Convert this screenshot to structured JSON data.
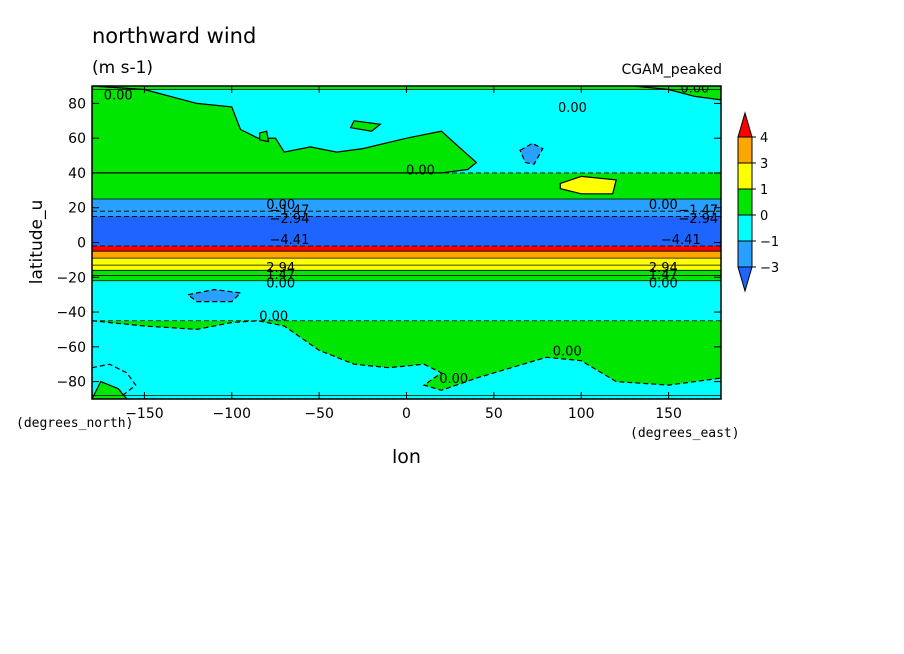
{
  "chart_data": {
    "type": "heatmap",
    "title": "northward wind",
    "units": "(m s-1)",
    "dataset": "CGAM_peaked",
    "xlabel": "lon",
    "ylabel": "latitude_u",
    "x_units": "(degrees_east)",
    "y_units": "(degrees_north)",
    "xlim": [
      -180,
      180
    ],
    "ylim": [
      -90,
      90
    ],
    "x_ticks": [
      -150,
      -100,
      -50,
      0,
      50,
      100,
      150
    ],
    "y_ticks": [
      80,
      60,
      40,
      20,
      0,
      -20,
      -40,
      -60,
      -80
    ],
    "colorbar": {
      "levels": [
        -3,
        -1,
        0,
        1,
        3,
        4
      ],
      "labels": [
        "4",
        "3",
        "1",
        "0",
        "−1",
        "−3"
      ],
      "colors": [
        "#1e64ff",
        "#28a0ff",
        "#00ffff",
        "#00e600",
        "#ffff00",
        "#ffa500",
        "#ff0000"
      ]
    },
    "lat_profile": [
      {
        "from": 88,
        "to": 90,
        "value": 0.3
      },
      {
        "from": 40,
        "to": 88,
        "value": -0.5
      },
      {
        "from": 25,
        "to": 40,
        "value": 0.4
      },
      {
        "from": 18,
        "to": 25,
        "value": -1.5
      },
      {
        "from": 15,
        "to": 18,
        "value": -2.5
      },
      {
        "from": -2,
        "to": 15,
        "value": -4.0
      },
      {
        "from": -5,
        "to": -2,
        "value": 4.5
      },
      {
        "from": -9,
        "to": -5,
        "value": 3.5
      },
      {
        "from": -13,
        "to": -9,
        "value": 2.5
      },
      {
        "from": -16,
        "to": -13,
        "value": 1.5
      },
      {
        "from": -19,
        "to": -16,
        "value": 0.8
      },
      {
        "from": -22,
        "to": -19,
        "value": 0.3
      },
      {
        "from": -45,
        "to": -22,
        "value": -0.5
      },
      {
        "from": -88,
        "to": -45,
        "value": 0.4
      },
      {
        "from": -90,
        "to": -88,
        "value": 0.3
      }
    ],
    "patches": [
      {
        "value": 0.4,
        "pts": [
          [
            -180,
            90
          ],
          [
            -150,
            88
          ],
          [
            -120,
            80
          ],
          [
            -100,
            78
          ],
          [
            -95,
            65
          ],
          [
            -85,
            60
          ],
          [
            -75,
            60
          ],
          [
            -70,
            52
          ],
          [
            -55,
            55
          ],
          [
            -40,
            52
          ],
          [
            -25,
            54
          ],
          [
            0,
            60
          ],
          [
            20,
            64
          ],
          [
            30,
            55
          ],
          [
            40,
            46
          ],
          [
            35,
            42
          ],
          [
            20,
            40
          ],
          [
            0,
            40
          ],
          [
            -30,
            40
          ],
          [
            -60,
            40
          ],
          [
            -90,
            40
          ],
          [
            -120,
            40
          ],
          [
            -150,
            40
          ],
          [
            -180,
            40
          ]
        ]
      },
      {
        "value": 0.4,
        "pts": [
          [
            130,
            90
          ],
          [
            180,
            90
          ],
          [
            180,
            82
          ],
          [
            165,
            84
          ],
          [
            150,
            88
          ]
        ]
      },
      {
        "value": 0.4,
        "pts": [
          [
            -30,
            70
          ],
          [
            -15,
            68
          ],
          [
            -20,
            64
          ],
          [
            -32,
            66
          ]
        ]
      },
      {
        "value": 0.4,
        "pts": [
          [
            -84,
            63
          ],
          [
            -80,
            64
          ],
          [
            -79,
            58
          ],
          [
            -84,
            59
          ]
        ]
      },
      {
        "value": -1.5,
        "pts": [
          [
            65,
            53
          ],
          [
            72,
            57
          ],
          [
            78,
            54
          ],
          [
            73,
            45
          ],
          [
            68,
            46
          ]
        ]
      },
      {
        "value": 1.5,
        "pts": [
          [
            88,
            34
          ],
          [
            100,
            38
          ],
          [
            120,
            36
          ],
          [
            118,
            28
          ],
          [
            100,
            28
          ],
          [
            88,
            31
          ]
        ]
      },
      {
        "value": -1.5,
        "pts": [
          [
            -125,
            -30
          ],
          [
            -110,
            -27
          ],
          [
            -95,
            -29
          ],
          [
            -100,
            -34
          ],
          [
            -120,
            -34
          ]
        ]
      },
      {
        "value": -0.5,
        "pts": [
          [
            -180,
            -45
          ],
          [
            -150,
            -48
          ],
          [
            -120,
            -50
          ],
          [
            -100,
            -46
          ],
          [
            -85,
            -45
          ],
          [
            -70,
            -48
          ],
          [
            -50,
            -62
          ],
          [
            -30,
            -70
          ],
          [
            -10,
            -72
          ],
          [
            10,
            -70
          ],
          [
            20,
            -75
          ],
          [
            10,
            -82
          ],
          [
            20,
            -85
          ],
          [
            40,
            -78
          ],
          [
            60,
            -72
          ],
          [
            80,
            -66
          ],
          [
            100,
            -68
          ],
          [
            120,
            -80
          ],
          [
            150,
            -82
          ],
          [
            180,
            -78
          ],
          [
            180,
            -90
          ],
          [
            -180,
            -90
          ]
        ]
      },
      {
        "value": -0.5,
        "pts": [
          [
            -180,
            -72
          ],
          [
            -170,
            -70
          ],
          [
            -160,
            -75
          ],
          [
            -155,
            -82
          ],
          [
            -165,
            -90
          ],
          [
            -180,
            -90
          ]
        ]
      },
      {
        "value": 0.4,
        "pts": [
          [
            -180,
            -90
          ],
          [
            -160,
            -90
          ],
          [
            -165,
            -84
          ],
          [
            -175,
            -80
          ]
        ]
      }
    ],
    "contour_labels": [
      {
        "text": "0.00",
        "x": -165,
        "y": 85
      },
      {
        "text": "0.00",
        "x": 95,
        "y": 78
      },
      {
        "text": "0.00",
        "x": 165,
        "y": 89
      },
      {
        "text": "0.00",
        "x": 8,
        "y": 42
      },
      {
        "text": "0.00",
        "x": -72,
        "y": 22
      },
      {
        "text": "0.00",
        "x": 147,
        "y": 22
      },
      {
        "text": "−1.47",
        "x": -67,
        "y": 19
      },
      {
        "text": "−2.94",
        "x": -67,
        "y": 14
      },
      {
        "text": "−2.94",
        "x": 167,
        "y": 14
      },
      {
        "text": "−1.47",
        "x": 167,
        "y": 19
      },
      {
        "text": "−4.41",
        "x": -67,
        "y": 2
      },
      {
        "text": "−4.41",
        "x": 157,
        "y": 2
      },
      {
        "text": "2.94",
        "x": -72,
        "y": -14
      },
      {
        "text": "1.47",
        "x": -72,
        "y": -18
      },
      {
        "text": "0.00",
        "x": -72,
        "y": -23
      },
      {
        "text": "2.94",
        "x": 147,
        "y": -14
      },
      {
        "text": "1.47",
        "x": 147,
        "y": -18
      },
      {
        "text": "0.00",
        "x": 147,
        "y": -23
      },
      {
        "text": "0.00",
        "x": -76,
        "y": -42
      },
      {
        "text": "0.00",
        "x": 92,
        "y": -62
      },
      {
        "text": "0.00",
        "x": 27,
        "y": -78
      }
    ]
  }
}
